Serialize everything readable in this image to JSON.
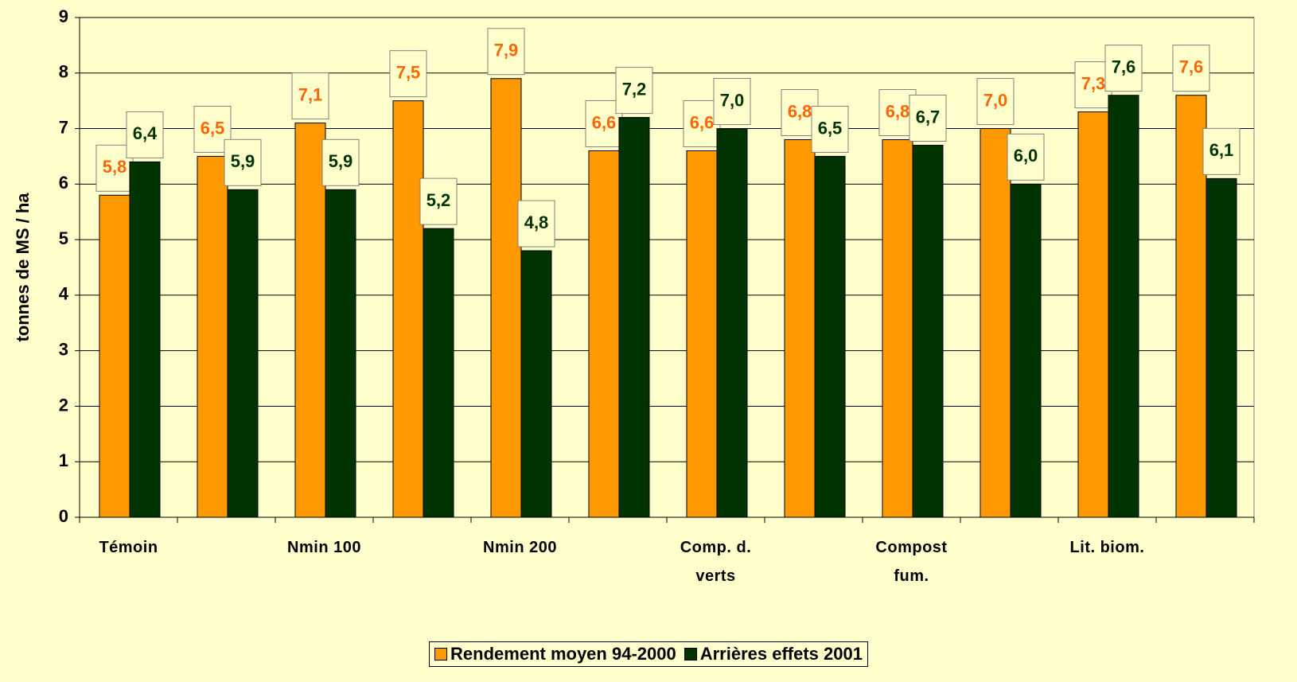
{
  "chart_data": {
    "type": "bar",
    "y_label": "tonnes de MS / ha",
    "categories": [
      "Témoin",
      null,
      "Nmin 100",
      null,
      "Nmin 200",
      null,
      "Comp. d. verts",
      null,
      "Compost fum.",
      null,
      "Lit. biom.",
      null
    ],
    "series": [
      {
        "name": "Rendement moyen 94-2000",
        "color": "#ff9900",
        "label_color": "#ff6600",
        "values": [
          5.8,
          6.5,
          7.1,
          7.5,
          7.9,
          6.6,
          6.6,
          6.8,
          6.8,
          7.0,
          7.3,
          7.6
        ],
        "value_labels": [
          "5,8",
          "6,5",
          "7,1",
          "7,5",
          "7,9",
          "6,6",
          "6,6",
          "6,8",
          "6,8",
          "7,0",
          "7,3",
          "7,6"
        ]
      },
      {
        "name": "Arrières effets 2001",
        "color": "#003300",
        "label_color": "#003300",
        "values": [
          6.4,
          5.9,
          5.9,
          5.2,
          4.8,
          7.2,
          7.0,
          6.5,
          6.7,
          6.0,
          7.6,
          6.1
        ],
        "value_labels": [
          "6,4",
          "5,9",
          "5,9",
          "5,2",
          "4,8",
          "7,2",
          "7,0",
          "6,5",
          "6,7",
          "6,0",
          "7,6",
          "6,1"
        ]
      }
    ],
    "ylim": [
      0,
      9
    ],
    "yticks": [
      0,
      1,
      2,
      3,
      4,
      5,
      6,
      7,
      8,
      9
    ],
    "grid": true,
    "legend": "bottom"
  }
}
